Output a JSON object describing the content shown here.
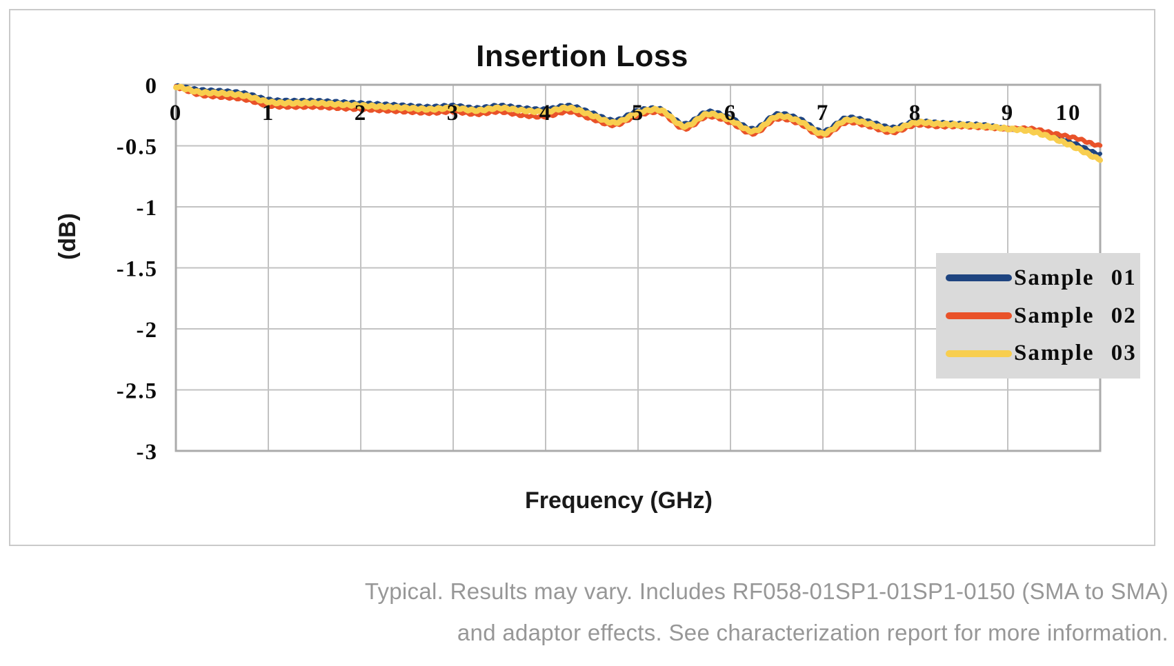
{
  "chart_data": {
    "type": "line",
    "title": "Insertion Loss",
    "xlabel": "Frequency (GHz)",
    "ylabel": "(dB)",
    "xlim": [
      0,
      10
    ],
    "ylim": [
      -3,
      0
    ],
    "grid": true,
    "legend_position": "middle-right",
    "x_ticks": [
      0,
      1,
      2,
      3,
      4,
      5,
      6,
      7,
      8,
      9,
      10
    ],
    "y_ticks": [
      0,
      -0.5,
      -1,
      -1.5,
      -2,
      -2.5,
      -3
    ],
    "y_tick_labels": [
      "0",
      "-0.5",
      "-1",
      "-1.5",
      "-2",
      "-2.5",
      "-3"
    ],
    "x": [
      0,
      0.25,
      0.5,
      0.75,
      1,
      1.25,
      1.5,
      1.75,
      2,
      2.25,
      2.5,
      2.75,
      3,
      3.25,
      3.5,
      3.75,
      4,
      4.25,
      4.5,
      4.75,
      5,
      5.25,
      5.5,
      5.75,
      6,
      6.25,
      6.5,
      6.75,
      7,
      7.25,
      7.5,
      7.75,
      8,
      8.25,
      8.5,
      8.75,
      9,
      9.25,
      9.5,
      9.75,
      10
    ],
    "series": [
      {
        "name": "Sample 01",
        "color": "#1E4480",
        "values": [
          -0.01,
          -0.04,
          -0.05,
          -0.07,
          -0.12,
          -0.13,
          -0.13,
          -0.14,
          -0.15,
          -0.16,
          -0.17,
          -0.18,
          -0.17,
          -0.19,
          -0.17,
          -0.19,
          -0.2,
          -0.17,
          -0.23,
          -0.29,
          -0.21,
          -0.2,
          -0.32,
          -0.22,
          -0.27,
          -0.36,
          -0.24,
          -0.28,
          -0.38,
          -0.27,
          -0.3,
          -0.35,
          -0.3,
          -0.31,
          -0.32,
          -0.33,
          -0.36,
          -0.37,
          -0.42,
          -0.49,
          -0.57
        ]
      },
      {
        "name": "Sample 02",
        "color": "#E95229",
        "values": [
          -0.02,
          -0.08,
          -0.1,
          -0.12,
          -0.17,
          -0.18,
          -0.18,
          -0.19,
          -0.2,
          -0.21,
          -0.22,
          -0.23,
          -0.22,
          -0.24,
          -0.22,
          -0.25,
          -0.26,
          -0.22,
          -0.28,
          -0.33,
          -0.25,
          -0.23,
          -0.36,
          -0.26,
          -0.31,
          -0.4,
          -0.28,
          -0.32,
          -0.42,
          -0.31,
          -0.34,
          -0.39,
          -0.33,
          -0.34,
          -0.34,
          -0.35,
          -0.36,
          -0.36,
          -0.4,
          -0.44,
          -0.5
        ]
      },
      {
        "name": "Sample 03",
        "color": "#F8CE4F",
        "values": [
          -0.015,
          -0.06,
          -0.07,
          -0.09,
          -0.14,
          -0.15,
          -0.15,
          -0.16,
          -0.17,
          -0.18,
          -0.19,
          -0.2,
          -0.19,
          -0.21,
          -0.19,
          -0.21,
          -0.22,
          -0.19,
          -0.25,
          -0.31,
          -0.23,
          -0.21,
          -0.34,
          -0.24,
          -0.29,
          -0.38,
          -0.26,
          -0.3,
          -0.4,
          -0.29,
          -0.32,
          -0.37,
          -0.31,
          -0.32,
          -0.33,
          -0.34,
          -0.36,
          -0.38,
          -0.44,
          -0.52,
          -0.61
        ]
      }
    ],
    "ripple": {
      "amplitude_db": 0.008,
      "period_ghz": 0.09
    }
  },
  "caption": {
    "line1": "Typical. Results may vary. Includes RF058-01SP1-01SP1-0150 (SMA to SMA)",
    "line2": "and adaptor effects. See characterization report for more information."
  },
  "colors": {
    "grid": "#c2c2c2",
    "frame": "#ababab",
    "legend_bg": "#dadada",
    "card_border": "#c9c9c9",
    "caption_text": "#979797",
    "tick_text": "#0c0c0c"
  }
}
